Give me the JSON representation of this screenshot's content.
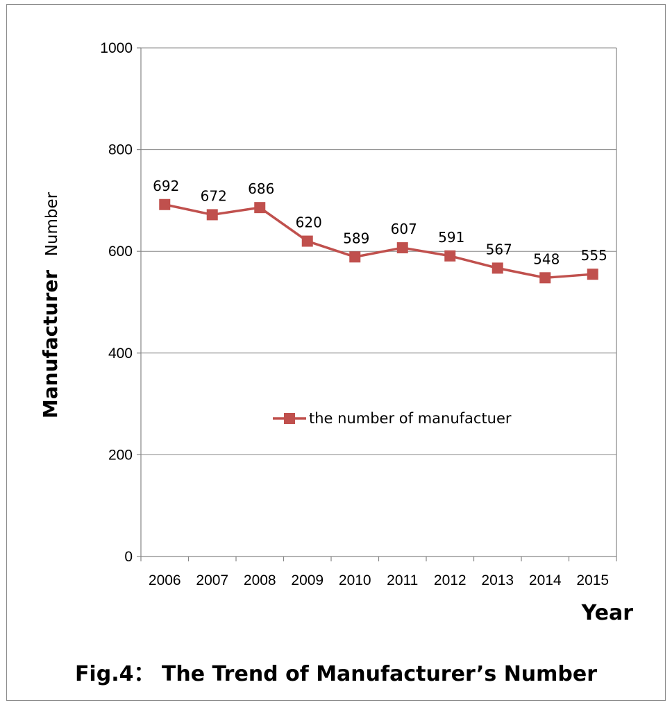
{
  "chart_data": {
    "type": "line",
    "categories": [
      "2006",
      "2007",
      "2008",
      "2009",
      "2010",
      "2011",
      "2012",
      "2013",
      "2014",
      "2015"
    ],
    "series": [
      {
        "name": "the number of manufactuer",
        "values": [
          692,
          672,
          686,
          620,
          589,
          607,
          591,
          567,
          548,
          555
        ],
        "color": "#c0504d"
      }
    ],
    "data_labels": [
      "692",
      "672",
      "686",
      "620",
      "589",
      "607",
      "591",
      "567",
      "548",
      "555"
    ],
    "y_ticks": [
      "0",
      "200",
      "400",
      "600",
      "800",
      "1000"
    ],
    "ylim": [
      0,
      1000
    ],
    "xlabel": "Year",
    "ylabel_main": "Manufacturer",
    "ylabel_sub": "Number",
    "grid": "horizontal",
    "legend_position": "inside-center"
  },
  "caption": "Fig.4： The Trend of Manufacturer’s Number"
}
